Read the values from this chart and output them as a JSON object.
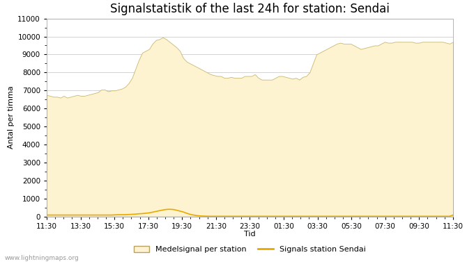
{
  "title": "Signalstatistik of the last 24h for station: Sendai",
  "xlabel": "Tid",
  "ylabel": "Antal per timma",
  "watermark": "www.lightningmaps.org",
  "ylim": [
    0,
    11000
  ],
  "yticks": [
    0,
    1000,
    2000,
    3000,
    4000,
    5000,
    6000,
    7000,
    8000,
    9000,
    10000,
    11000
  ],
  "xtick_labels": [
    "11:30",
    "13:30",
    "15:30",
    "17:30",
    "19:30",
    "21:30",
    "23:30",
    "01:30",
    "03:30",
    "05:30",
    "07:30",
    "09:30",
    "11:30"
  ],
  "fill_color": "#fdf3d0",
  "fill_edge_color": "#c8b870",
  "line_color": "#e8a800",
  "background_color": "#ffffff",
  "grid_color": "#cccccc",
  "title_fontsize": 12,
  "legend_label_fill": "Medelsignal per station",
  "legend_label_line": "Signals station Sendai",
  "mean_signal": [
    6750,
    6700,
    6650,
    6650,
    6600,
    6700,
    6600,
    6650,
    6700,
    6750,
    6700,
    6700,
    6750,
    6800,
    6850,
    6900,
    7050,
    7050,
    6950,
    7000,
    7000,
    7050,
    7100,
    7200,
    7400,
    7700,
    8200,
    8700,
    9100,
    9200,
    9300,
    9600,
    9800,
    9850,
    9950,
    9850,
    9700,
    9550,
    9400,
    9200,
    8800,
    8600,
    8500,
    8400,
    8300,
    8200,
    8100,
    8000,
    7900,
    7850,
    7800,
    7800,
    7700,
    7700,
    7750,
    7700,
    7700,
    7700,
    7800,
    7800,
    7800,
    7900,
    7700,
    7600,
    7600,
    7600,
    7600,
    7700,
    7800,
    7800,
    7750,
    7700,
    7650,
    7700,
    7600,
    7750,
    7800,
    8000,
    8500,
    9000,
    9100,
    9200,
    9300,
    9400,
    9500,
    9600,
    9650,
    9600,
    9600,
    9600,
    9500,
    9400,
    9300,
    9350,
    9400,
    9450,
    9500,
    9500,
    9600,
    9700,
    9650,
    9650,
    9700,
    9700,
    9700,
    9700,
    9700,
    9700,
    9650,
    9650,
    9700,
    9700,
    9700,
    9700,
    9700,
    9700,
    9700,
    9650,
    9600,
    9700
  ],
  "station_signal": [
    80,
    80,
    80,
    80,
    80,
    80,
    80,
    80,
    80,
    80,
    80,
    80,
    80,
    80,
    80,
    80,
    80,
    80,
    80,
    80,
    90,
    100,
    100,
    100,
    110,
    120,
    130,
    150,
    160,
    180,
    200,
    240,
    280,
    320,
    360,
    390,
    400,
    390,
    350,
    300,
    250,
    180,
    120,
    80,
    50,
    30,
    20,
    15,
    10,
    10,
    10,
    10,
    10,
    10,
    10,
    10,
    10,
    10,
    10,
    10,
    10,
    10,
    10,
    10,
    10,
    10,
    10,
    10,
    10,
    10,
    10,
    10,
    10,
    10,
    10,
    10,
    10,
    10,
    10,
    10,
    10,
    10,
    10,
    10,
    10,
    10,
    10,
    10,
    10,
    10,
    10,
    10,
    10,
    10,
    10,
    10,
    10,
    10,
    10,
    10,
    10,
    10,
    10,
    10,
    10,
    10,
    10,
    10,
    10,
    10,
    10,
    10,
    10,
    10,
    10,
    10,
    10,
    10,
    10,
    80
  ]
}
